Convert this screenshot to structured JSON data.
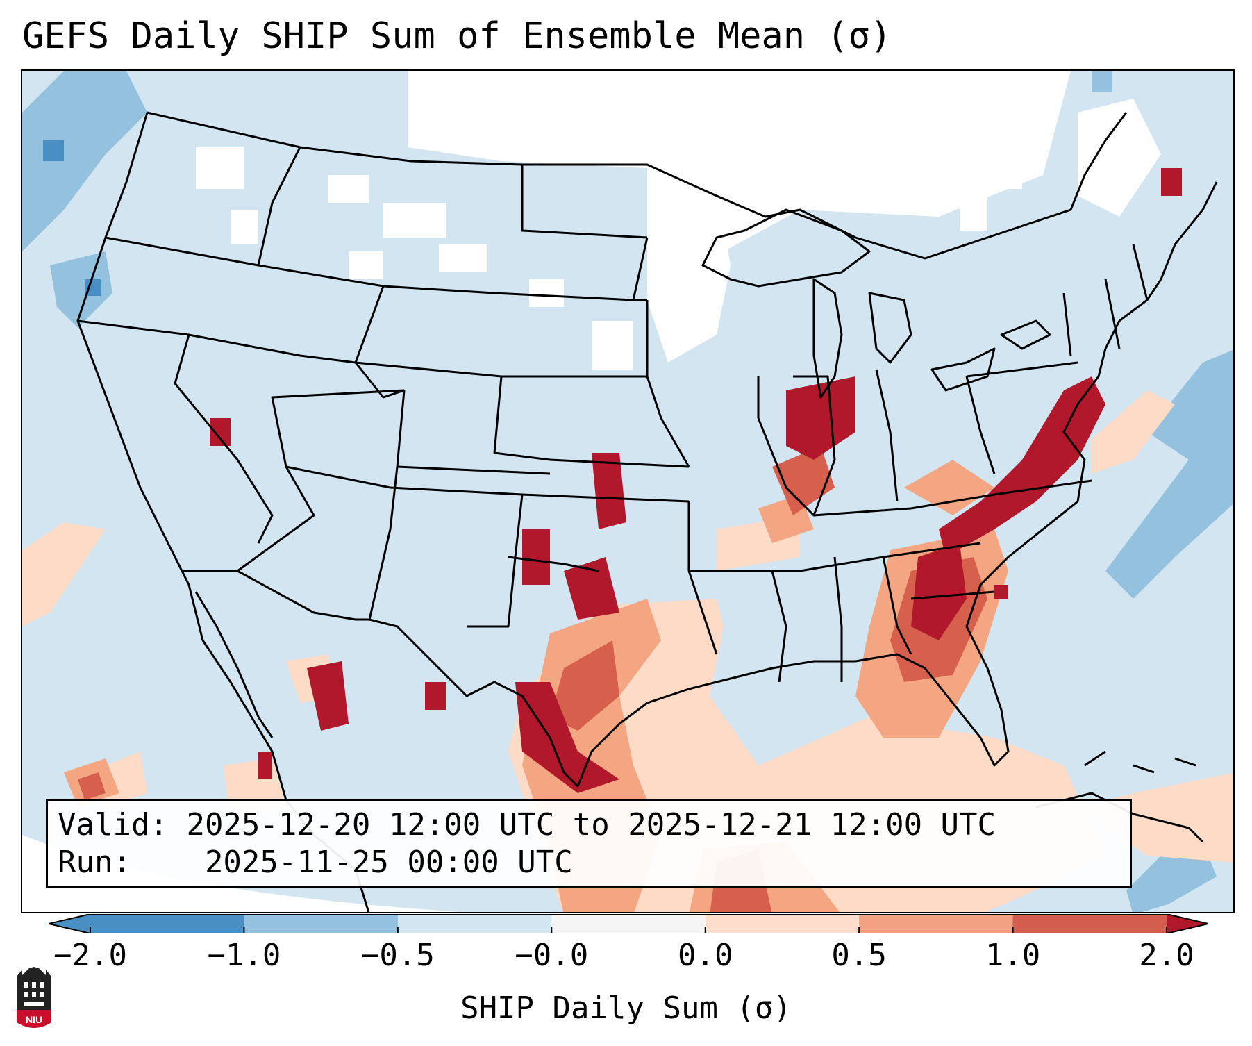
{
  "title": "GEFS Daily SHIP Sum of Ensemble Mean (σ)",
  "info": {
    "valid_label": "Valid:",
    "valid_value": "2025-12-20 12:00 UTC to 2025-12-21 12:00 UTC",
    "run_label": "Run:",
    "run_value": "2025-11-25 00:00 UTC"
  },
  "colorbar": {
    "label": "SHIP Daily Sum (σ)",
    "ticks": [
      "−2.0",
      "−1.0",
      "−0.5",
      "−0.0",
      "0.0",
      "0.5",
      "1.0",
      "2.0"
    ],
    "colors": [
      "#4a8fc4",
      "#93c1de",
      "#d2e5f1",
      "#f5f5f5",
      "#fdddcc",
      "#f2a283",
      "#d35e4e",
      "#b2182b"
    ],
    "extend": "both"
  },
  "legend_colors": {
    "below_-1": "#4a8fc4",
    "-1_to_-0.5": "#93c1de",
    "-0.5_to_0": "#d2e5f1",
    "near_0": "#ffffff",
    "0_to_0.5": "#fddbc7",
    "0.5_to_1": "#f4a582",
    "1_to_2": "#d6604d",
    "above_2": "#b2182b"
  },
  "logo": {
    "text": "NIU",
    "color": "#c8102e"
  }
}
